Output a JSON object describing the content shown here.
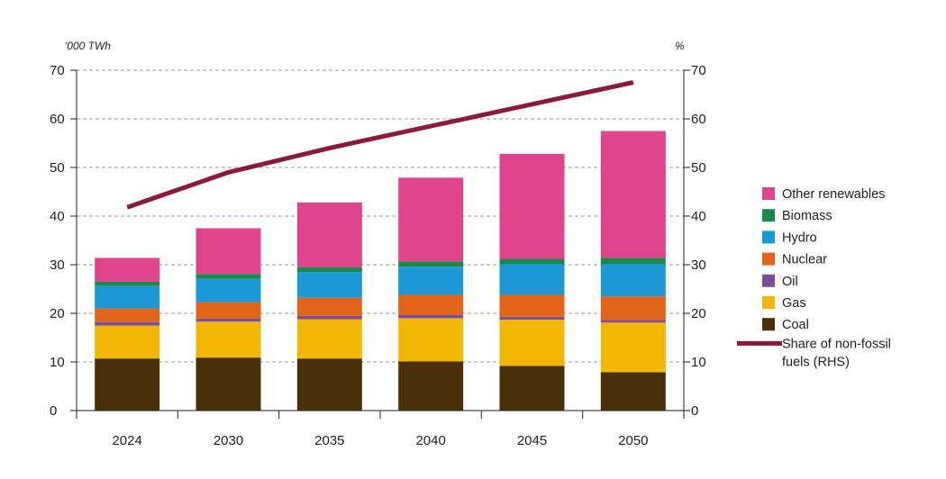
{
  "chart_data": {
    "type": "bar",
    "stacked": true,
    "categories": [
      "2024",
      "2030",
      "2035",
      "2040",
      "2045",
      "2050"
    ],
    "left_axis": {
      "unit": "'000 TWh",
      "ylim": [
        0,
        70
      ],
      "ticks": [
        "0",
        "10",
        "20",
        "30",
        "40",
        "50",
        "60",
        "70"
      ]
    },
    "right_axis": {
      "unit": "%",
      "ylim": [
        0,
        70
      ],
      "ticks": [
        "0",
        "10",
        "20",
        "30",
        "40",
        "50",
        "60",
        "70"
      ]
    },
    "grid": "horizontal dashed",
    "legend_position": "right",
    "series": [
      {
        "name": "Coal",
        "color": "#4a3008",
        "values": [
          10.7,
          10.9,
          10.7,
          10.1,
          9.2,
          7.9
        ]
      },
      {
        "name": "Gas",
        "color": "#f2b705",
        "values": [
          6.8,
          7.4,
          8.1,
          8.9,
          9.5,
          10.2
        ]
      },
      {
        "name": "Oil",
        "color": "#7b4e9a",
        "values": [
          0.7,
          0.6,
          0.7,
          0.7,
          0.6,
          0.5
        ]
      },
      {
        "name": "Nuclear",
        "color": "#e2641a",
        "values": [
          2.8,
          3.4,
          3.7,
          4.1,
          4.5,
          4.9
        ]
      },
      {
        "name": "Hydro",
        "color": "#1b98d5",
        "values": [
          4.6,
          4.8,
          5.3,
          5.8,
          6.3,
          6.6
        ]
      },
      {
        "name": "Biomass",
        "color": "#1a8a4c",
        "values": [
          0.9,
          1.0,
          1.0,
          1.1,
          1.1,
          1.3
        ]
      },
      {
        "name": "Other renewables",
        "color": "#e0448b",
        "values": [
          4.9,
          9.4,
          13.3,
          17.2,
          21.6,
          26.1
        ]
      }
    ],
    "line_series": {
      "name": "Share of non-fossil fuels (RHS)",
      "color": "#8c1a3a",
      "axis": "right",
      "values": [
        41.8,
        49.0,
        54.0,
        58.5,
        63.0,
        67.5
      ]
    },
    "legend_order": [
      "Other renewables",
      "Biomass",
      "Hydro",
      "Nuclear",
      "Oil",
      "Gas",
      "Coal"
    ],
    "line_legend_lines": [
      "Share of non-fossil fuels",
      "fuels (RHS)"
    ]
  }
}
